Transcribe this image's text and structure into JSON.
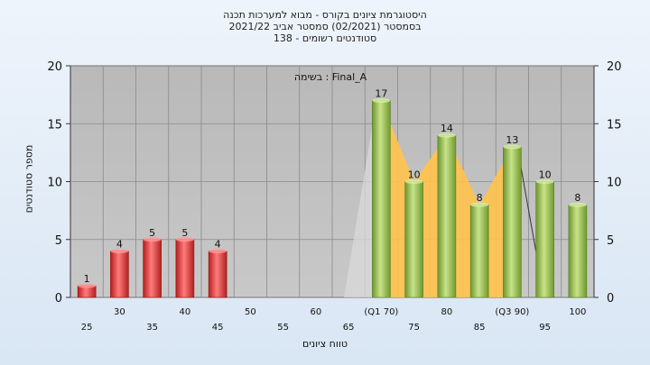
{
  "chart_data": {
    "type": "bar",
    "title": [
      "היסטוגרמת ציונים בקורס - מבוא למערכות תכנה",
      "בסמסטר (02/2021) סמסטר אביב 2021/22",
      "סטודנטים רשומים - 138"
    ],
    "ylabel": "מספר סטודנטים",
    "xlabel": "טווח ציונים",
    "ylim": [
      0,
      20
    ],
    "y_ticks": [
      0,
      5,
      10,
      15,
      20
    ],
    "annotation": "בשימה : Final_A",
    "categories": [
      "25",
      "30",
      "35",
      "40",
      "45",
      "50",
      "55",
      "60",
      "65",
      "(Q1 70)",
      "75",
      "80",
      "85",
      "(Q3 90)",
      "95",
      "100"
    ],
    "values": [
      1,
      4,
      5,
      5,
      4,
      0,
      0,
      0,
      0,
      17,
      10,
      14,
      8,
      13,
      10,
      8
    ],
    "value_labels": [
      "1",
      "4",
      "5",
      "5",
      "4",
      "",
      "",
      "",
      "",
      "17",
      "10",
      "14",
      "8",
      "13",
      "10",
      "8"
    ],
    "colors": {
      "fail": "#d93030",
      "pass": "#8fb84a",
      "iqr": "#ffc34d",
      "plot_bg": "#c0c0c0",
      "grid": "#8a8a8a"
    }
  }
}
